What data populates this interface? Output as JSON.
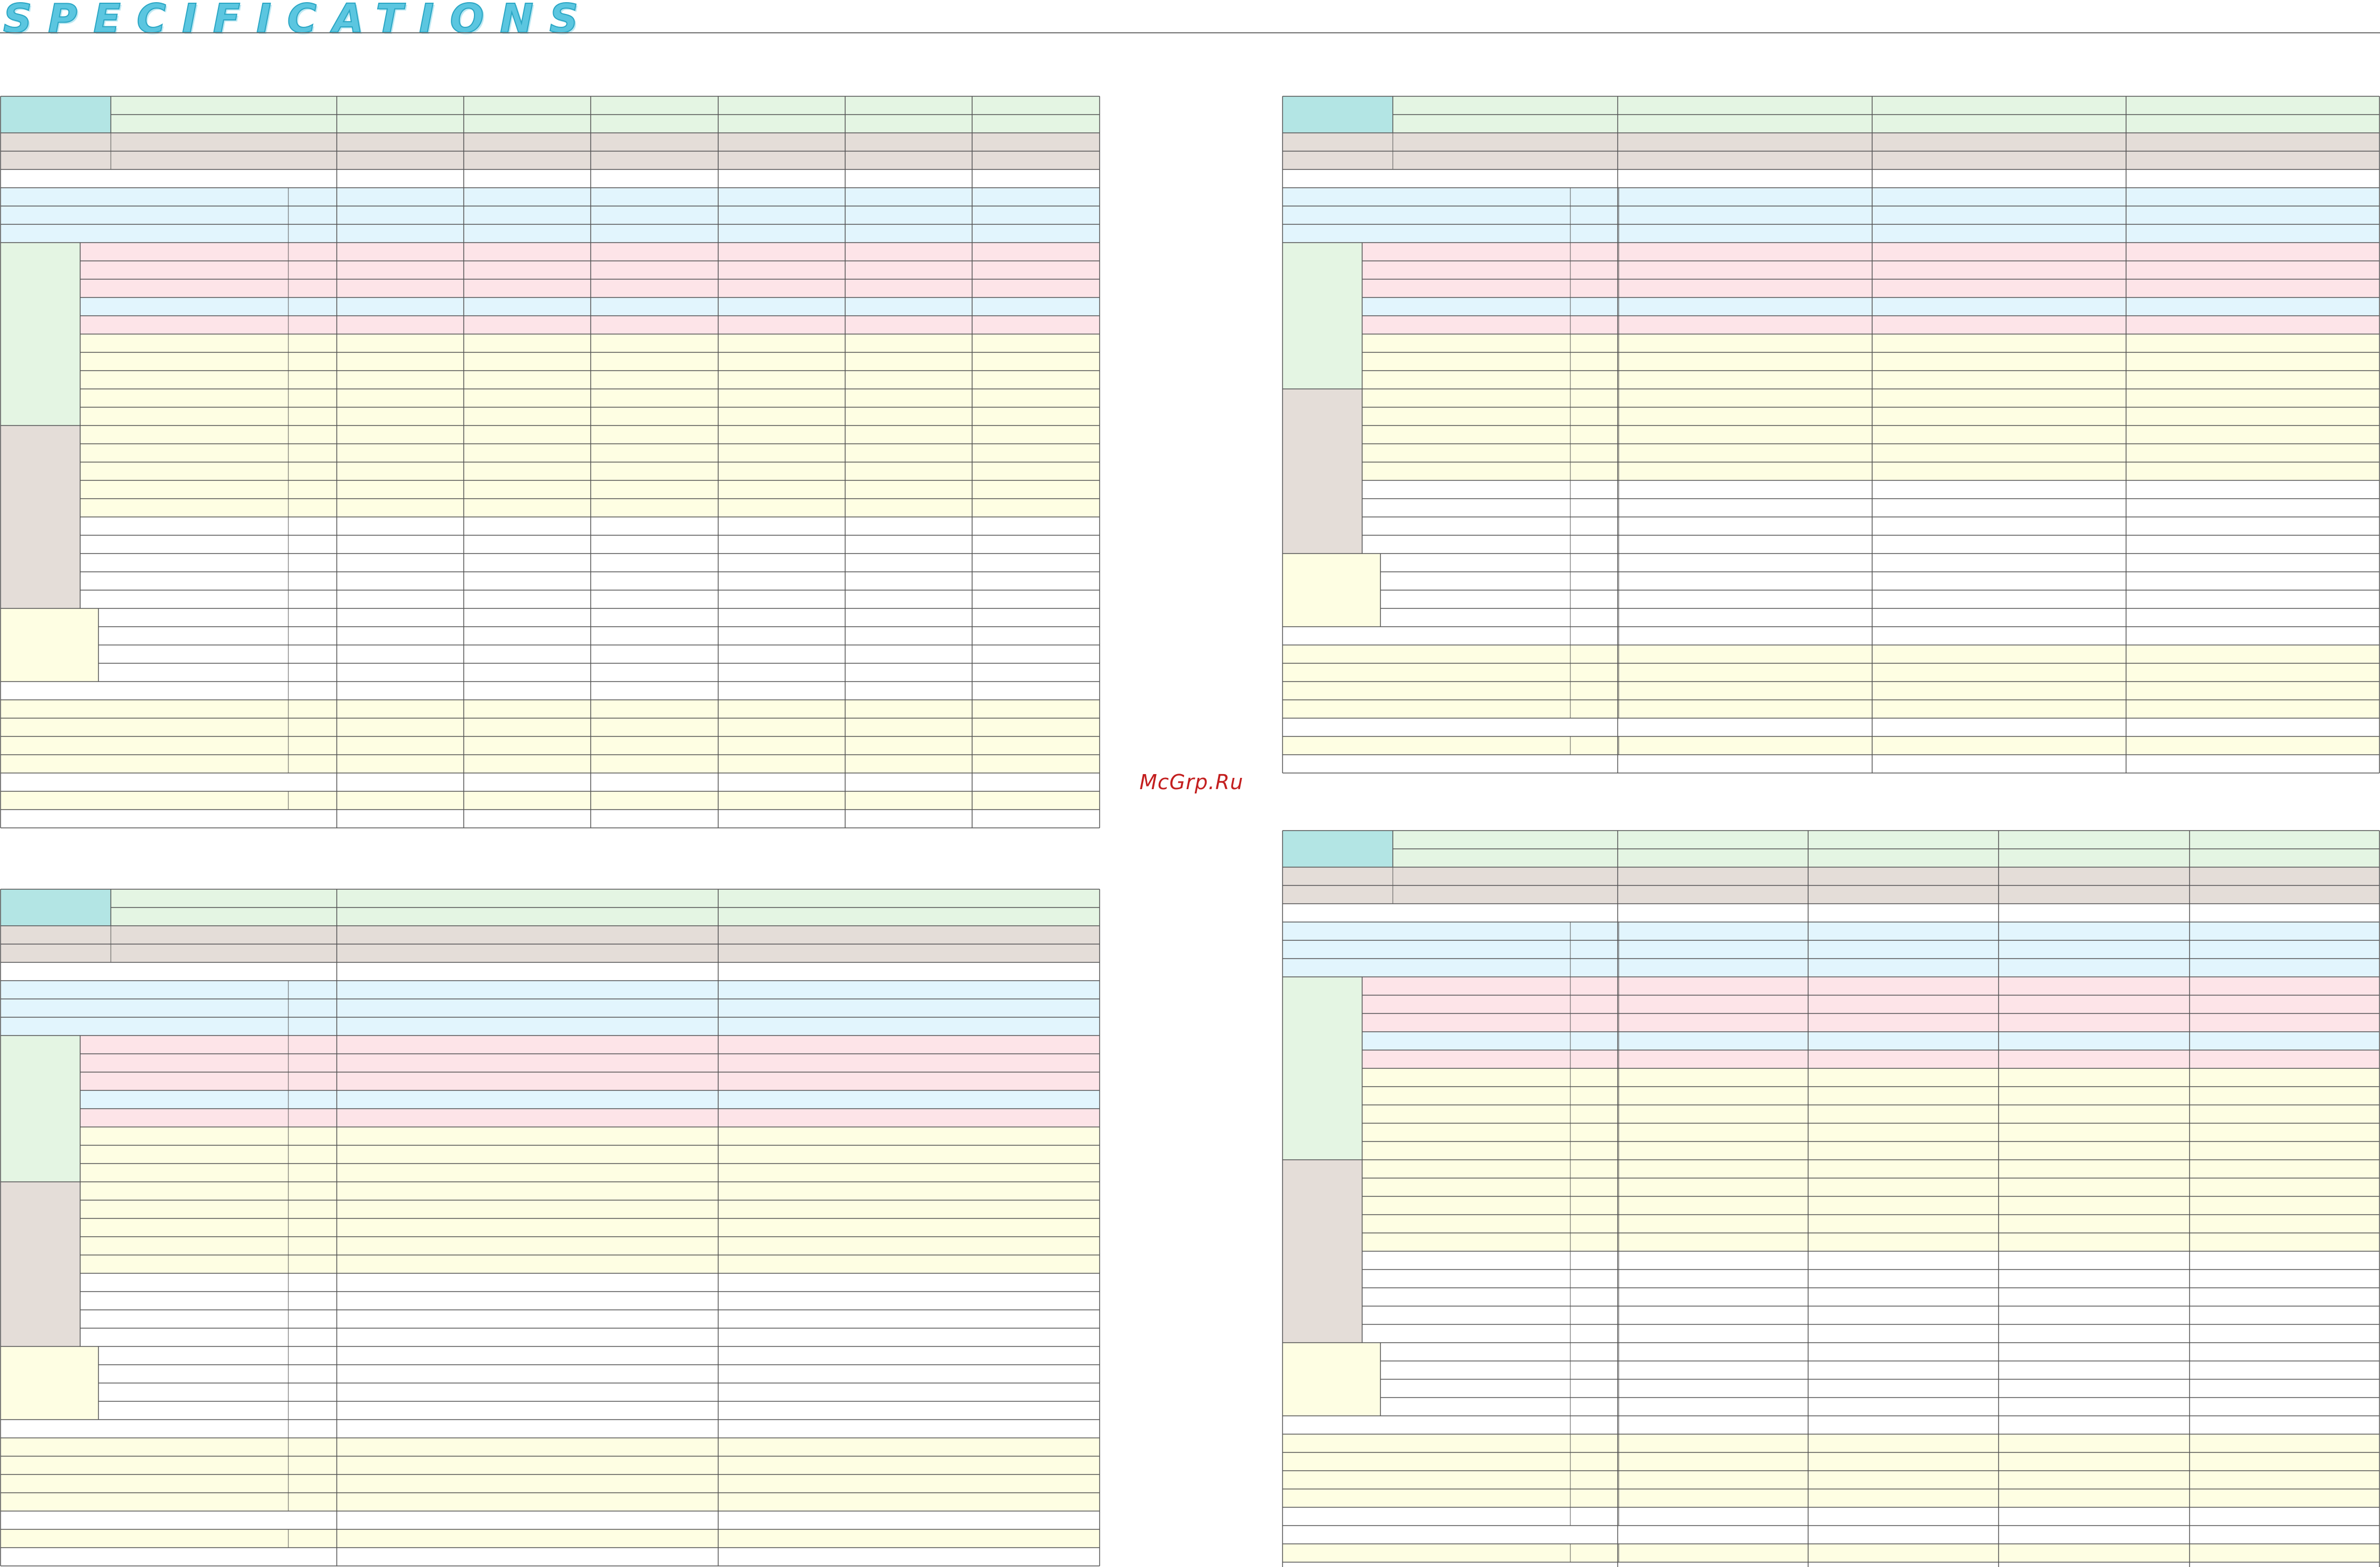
{
  "header": {
    "title": "SPECIFICATIONS"
  },
  "watermark": {
    "text": "McGrp.Ru"
  },
  "colors": {
    "border": "#555555",
    "row_green": "#e4f5e3",
    "model_cyan": "#b3e5e4",
    "taupe": "#e4ddd8",
    "light_blue": "#e2f5fd",
    "pink": "#fde4e8",
    "cream": "#fefee3",
    "white": "#ffffff",
    "title_cyan": "#5bc6e0"
  },
  "icons": {
    "title_style": "outlined-italic-lettering"
  }
}
